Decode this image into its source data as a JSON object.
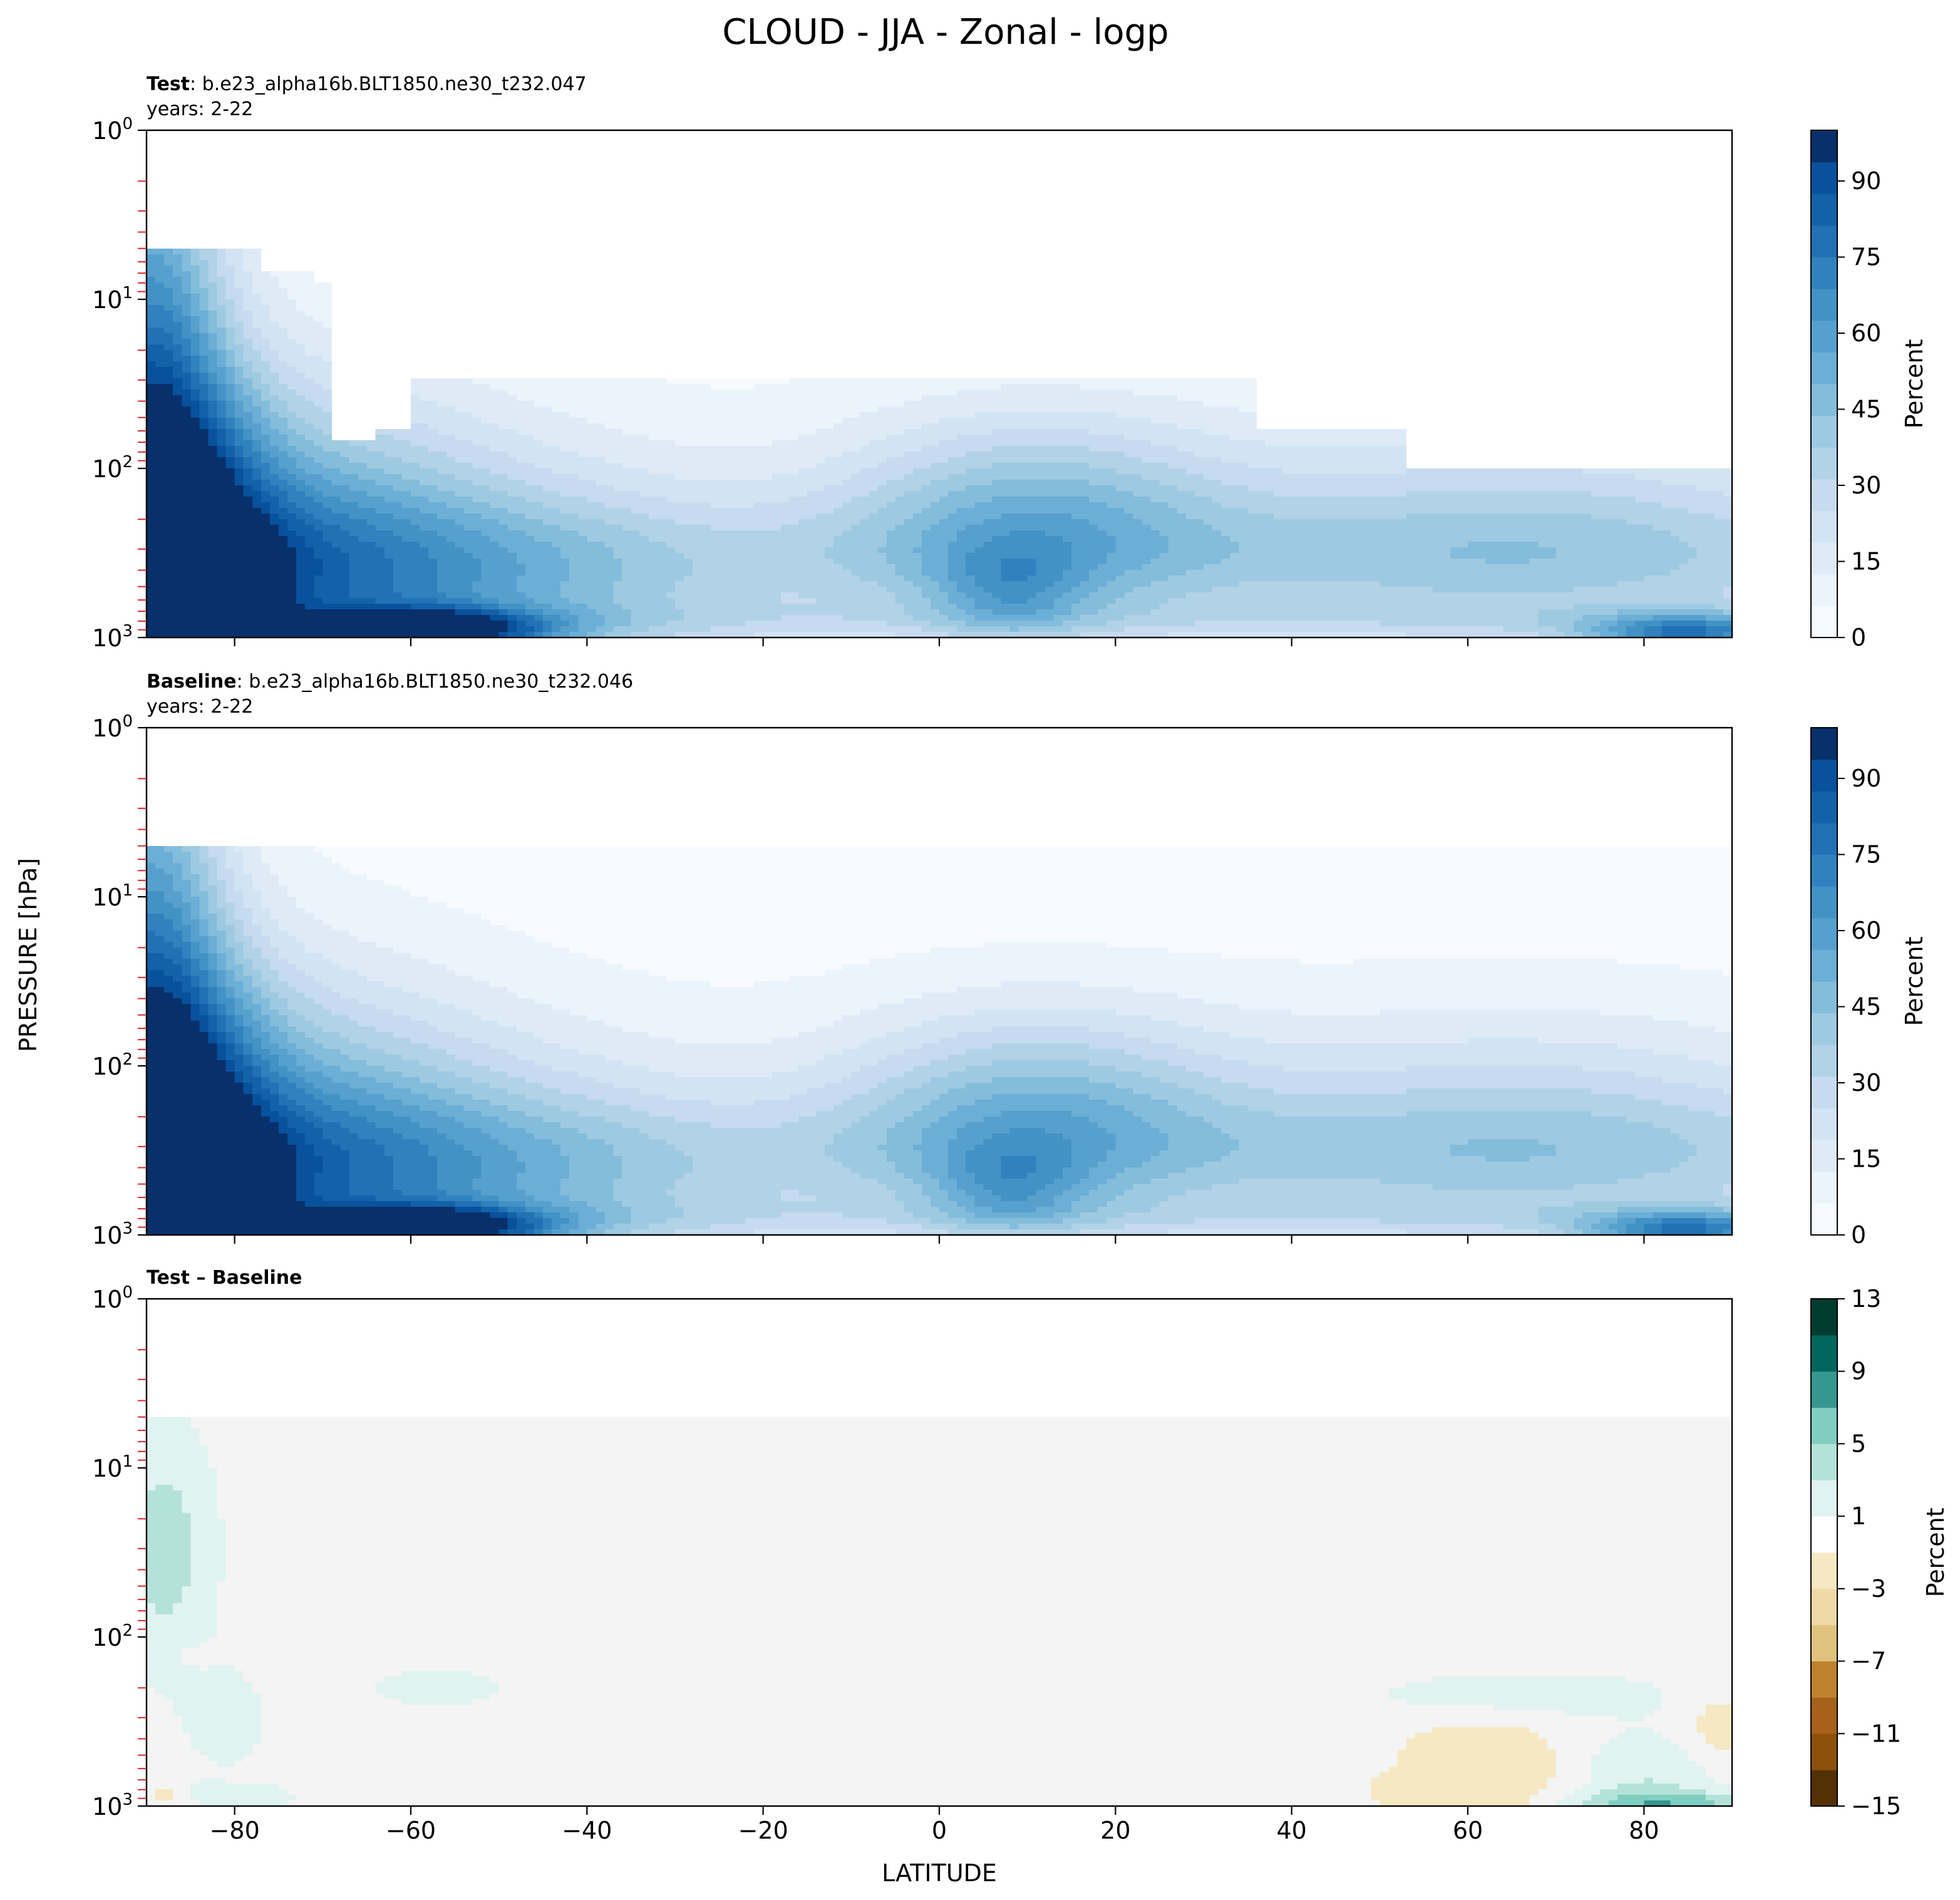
{
  "figure": {
    "title": "CLOUD - JJA - Zonal - logp",
    "xlabel": "LATITUDE",
    "ylabel": "PRESSURE [hPa]"
  },
  "colors": {
    "blues": [
      "#f7fbff",
      "#ebf3fb",
      "#deebf7",
      "#d2e3f3",
      "#c6dbef",
      "#b2d2e8",
      "#9ecae1",
      "#84bcdb",
      "#6baed6",
      "#57a0ce",
      "#4292c6",
      "#3082be",
      "#2171b5",
      "#1361a9",
      "#08519c",
      "#08306b"
    ],
    "brbg_pos": [
      "#e0f3f0",
      "#b4e2d9",
      "#80cdc1",
      "#35978f",
      "#01665e",
      "#003c30"
    ],
    "brbg_neg": [
      "#f6e8c3",
      "#efd9a7",
      "#dfc27d",
      "#bf812d",
      "#a6611a",
      "#8c510a",
      "#543005"
    ],
    "neutral": "#f3f4f3",
    "tick_red": "#d62728"
  },
  "chart_data": [
    {
      "type": "heatmap",
      "id": "test",
      "label_bold": "Test",
      "label_rest": ": b.e23_alpha16b.BLT1850.ne30_t232.047",
      "subtitle": "years: 2-22",
      "xlim": [
        -90,
        90
      ],
      "ylim": [
        1,
        1000
      ],
      "yscale": "log",
      "xticks": [
        -80,
        -60,
        -40,
        -20,
        0,
        20,
        40,
        60,
        80
      ],
      "yticks": [
        {
          "base": "10",
          "exp": "0"
        },
        {
          "base": "10",
          "exp": "1"
        },
        {
          "base": "10",
          "exp": "2"
        },
        {
          "base": "10",
          "exp": "3"
        }
      ],
      "colorbar": {
        "label": "Percent",
        "range": [
          0,
          100
        ],
        "ticks": [
          "0",
          "15",
          "30",
          "45",
          "60",
          "75",
          "90"
        ]
      },
      "top_pressure": [
        5,
        5,
        5,
        5,
        5,
        5,
        7,
        7,
        7,
        8,
        70,
        70,
        60,
        60,
        30,
        30,
        30,
        30,
        30,
        30,
        30,
        30,
        30,
        30,
        30,
        30,
        30,
        30,
        30,
        30,
        30,
        30,
        30,
        30,
        30,
        30,
        30,
        30,
        30,
        30,
        30,
        30,
        30,
        30,
        30,
        30,
        30,
        30,
        30,
        30,
        30,
        30,
        30,
        30,
        30,
        30,
        30,
        30,
        30,
        30,
        60,
        60,
        60,
        60,
        60,
        60,
        60,
        60,
        100,
        100,
        100,
        100,
        100,
        100,
        100,
        100,
        100,
        100,
        100,
        100,
        100,
        100,
        100,
        100,
        100,
        100
      ],
      "features": [
        {
          "lat": -90,
          "p": 60,
          "v": 58,
          "sx": 6,
          "sy": 1.6
        },
        {
          "lat": -86,
          "p": 400,
          "v": 55,
          "sx": 8,
          "sy": 0.9
        },
        {
          "lat": -75,
          "p": 400,
          "v": 45,
          "sx": 16,
          "sy": 0.75
        },
        {
          "lat": -50,
          "p": 500,
          "v": 30,
          "sx": 22,
          "sy": 0.6
        },
        {
          "lat": -58,
          "p": 900,
          "v": 72,
          "sx": 9,
          "sy": 0.08
        },
        {
          "lat": 10,
          "p": 200,
          "v": 40,
          "sx": 16,
          "sy": 0.45
        },
        {
          "lat": 8,
          "p": 550,
          "v": 22,
          "sx": 6,
          "sy": 0.2
        },
        {
          "lat": 65,
          "p": 250,
          "v": 28,
          "sx": 28,
          "sy": 0.5
        },
        {
          "lat": 85,
          "p": 950,
          "v": 55,
          "sx": 8,
          "sy": 0.08
        }
      ]
    },
    {
      "type": "heatmap",
      "id": "baseline",
      "label_bold": "Baseline",
      "label_rest": ": b.e23_alpha16b.BLT1850.ne30_t232.046",
      "subtitle": "years: 2-22",
      "xlim": [
        -90,
        90
      ],
      "ylim": [
        1,
        1000
      ],
      "yscale": "log",
      "xticks": [
        -80,
        -60,
        -40,
        -20,
        0,
        20,
        40,
        60,
        80
      ],
      "yticks": [
        {
          "base": "10",
          "exp": "0"
        },
        {
          "base": "10",
          "exp": "1"
        },
        {
          "base": "10",
          "exp": "2"
        },
        {
          "base": "10",
          "exp": "3"
        }
      ],
      "colorbar": {
        "label": "Percent",
        "range": [
          0,
          100
        ],
        "ticks": [
          "0",
          "15",
          "30",
          "45",
          "60",
          "75",
          "90"
        ]
      },
      "top_pressure": [
        5
      ],
      "features": [
        {
          "lat": -90,
          "p": 60,
          "v": 55,
          "sx": 6,
          "sy": 1.5
        },
        {
          "lat": -86,
          "p": 400,
          "v": 55,
          "sx": 8,
          "sy": 0.9
        },
        {
          "lat": -75,
          "p": 400,
          "v": 45,
          "sx": 16,
          "sy": 0.75
        },
        {
          "lat": -50,
          "p": 500,
          "v": 30,
          "sx": 22,
          "sy": 0.6
        },
        {
          "lat": -58,
          "p": 900,
          "v": 72,
          "sx": 9,
          "sy": 0.08
        },
        {
          "lat": 10,
          "p": 200,
          "v": 40,
          "sx": 16,
          "sy": 0.45
        },
        {
          "lat": 8,
          "p": 550,
          "v": 22,
          "sx": 6,
          "sy": 0.2
        },
        {
          "lat": 65,
          "p": 250,
          "v": 28,
          "sx": 28,
          "sy": 0.5
        },
        {
          "lat": 85,
          "p": 950,
          "v": 55,
          "sx": 8,
          "sy": 0.08
        }
      ]
    },
    {
      "type": "heatmap",
      "id": "diff",
      "label_bold": "Test – Baseline",
      "label_rest": "",
      "subtitle": "",
      "xlim": [
        -90,
        90
      ],
      "ylim": [
        1,
        1000
      ],
      "yscale": "log",
      "xticks": [
        -80,
        -60,
        -40,
        -20,
        0,
        20,
        40,
        60,
        80
      ],
      "yticks": [
        {
          "base": "10",
          "exp": "0"
        },
        {
          "base": "10",
          "exp": "1"
        },
        {
          "base": "10",
          "exp": "2"
        },
        {
          "base": "10",
          "exp": "3"
        }
      ],
      "colorbar": {
        "label": "Percent",
        "range": [
          -15,
          13
        ],
        "ticks": [
          "−15",
          "−11",
          "−7",
          "−3",
          "1",
          "5",
          "9",
          "13"
        ]
      },
      "top_pressure": [
        5
      ],
      "features": [
        {
          "lat": -88,
          "p": 30,
          "v": 4,
          "sx": 4,
          "sy": 0.5
        },
        {
          "lat": -81,
          "p": 300,
          "v": 2.5,
          "sx": 3,
          "sy": 0.2
        },
        {
          "lat": -57,
          "p": 200,
          "v": 2.5,
          "sx": 5,
          "sy": 0.08
        },
        {
          "lat": -84,
          "p": 850,
          "v": 2,
          "sx": 2,
          "sy": 0.06
        },
        {
          "lat": -77,
          "p": 870,
          "v": 2,
          "sx": 3,
          "sy": 0.06
        },
        {
          "lat": 66,
          "p": 220,
          "v": 2.5,
          "sx": 12,
          "sy": 0.1
        },
        {
          "lat": 80,
          "p": 700,
          "v": 3,
          "sx": 6,
          "sy": 0.2
        },
        {
          "lat": 83,
          "p": 960,
          "v": 5,
          "sx": 8,
          "sy": 0.05
        },
        {
          "lat": 62,
          "p": 650,
          "v": -3,
          "sx": 7,
          "sy": 0.25
        },
        {
          "lat": 89,
          "p": 350,
          "v": -2.5,
          "sx": 3,
          "sy": 0.15
        },
        {
          "lat": 52,
          "p": 800,
          "v": -2,
          "sx": 2,
          "sy": 0.05
        },
        {
          "lat": -87,
          "p": 850,
          "v": -2,
          "sx": 2,
          "sy": 0.05
        },
        {
          "lat": -84,
          "p": 130,
          "v": -2,
          "sx": 1.5,
          "sy": 0.04
        }
      ]
    }
  ]
}
